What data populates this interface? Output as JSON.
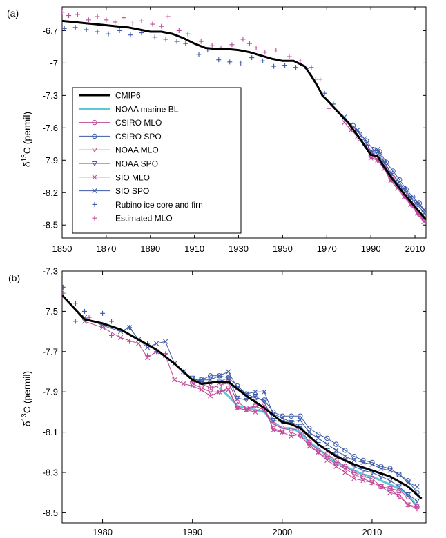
{
  "panels": {
    "a": {
      "label": "(a)"
    },
    "b": {
      "label": "(b)"
    }
  },
  "ylabel": {
    "delta": "δ",
    "sup": "13",
    "rest": "C  (permil)"
  },
  "colors": {
    "cmip6": "#000000",
    "noaa_bl": "#5bc8d8",
    "blue": "#3c5aa8",
    "magenta": "#c0489a"
  },
  "chart_data": [
    {
      "type": "line",
      "panel": "a",
      "xlim": [
        1850,
        2015
      ],
      "ylim": [
        -8.62,
        -6.48
      ],
      "xticks": [
        1850,
        1870,
        1890,
        1910,
        1930,
        1950,
        1970,
        1990,
        2010
      ],
      "yticks": [
        -6.7,
        -7,
        -7.3,
        -7.6,
        -7.9,
        -8.2,
        -8.5
      ],
      "ytick_labels": [
        "-6.7",
        "-7",
        "-7.3",
        "-7.6",
        "-7.9",
        "-8.2",
        "-8.5"
      ],
      "ylabel": "δ13C (permil)",
      "legend_position": "lower-left",
      "legend": [
        {
          "label": "CMIP6",
          "style": "thick-line",
          "color": "#000000"
        },
        {
          "label": "NOAA marine BL",
          "style": "line",
          "color": "#5bc8d8"
        },
        {
          "label": "CSIRO MLO",
          "style": "circle",
          "color": "#c0489a"
        },
        {
          "label": "CSIRO SPO",
          "style": "circle",
          "color": "#3c5aa8"
        },
        {
          "label": "NOAA MLO",
          "style": "triangle",
          "color": "#c0489a"
        },
        {
          "label": "NOAA SPO",
          "style": "triangle",
          "color": "#3c5aa8"
        },
        {
          "label": "SIO MLO",
          "style": "x",
          "color": "#c0489a"
        },
        {
          "label": "SIO SPO",
          "style": "x",
          "color": "#3c5aa8"
        },
        {
          "label": "Rubino ice core and firn",
          "style": "plus",
          "color": "#3c5aa8"
        },
        {
          "label": "Estimated MLO",
          "style": "plus",
          "color": "#c0489a"
        }
      ],
      "series": [
        {
          "name": "CMIP6",
          "x": [
            1850,
            1855,
            1860,
            1865,
            1870,
            1875,
            1880,
            1885,
            1890,
            1895,
            1900,
            1905,
            1910,
            1915,
            1920,
            1925,
            1930,
            1935,
            1940,
            1945,
            1950,
            1955,
            1960,
            1963,
            1966,
            1968,
            1970,
            1975,
            1980,
            1985,
            1990,
            1993,
            1995,
            2000,
            2005,
            2010,
            2015
          ],
          "y": [
            -6.61,
            -6.62,
            -6.63,
            -6.64,
            -6.65,
            -6.66,
            -6.67,
            -6.69,
            -6.71,
            -6.71,
            -6.73,
            -6.77,
            -6.82,
            -6.86,
            -6.87,
            -6.87,
            -6.88,
            -6.9,
            -6.93,
            -6.96,
            -6.98,
            -6.98,
            -7.03,
            -7.12,
            -7.22,
            -7.3,
            -7.34,
            -7.45,
            -7.56,
            -7.7,
            -7.85,
            -7.86,
            -7.93,
            -8.08,
            -8.21,
            -8.33,
            -8.45
          ]
        },
        {
          "name": "Rubino ice core and firn",
          "x": [
            1851,
            1856,
            1861,
            1866,
            1871,
            1876,
            1881,
            1886,
            1892,
            1897,
            1902,
            1906,
            1912,
            1916,
            1921,
            1926,
            1931,
            1936,
            1941,
            1946,
            1951,
            1956,
            1961,
            1965,
            1969,
            1973,
            1978,
            1983,
            1988
          ],
          "y": [
            -6.68,
            -6.67,
            -6.69,
            -6.71,
            -6.73,
            -6.7,
            -6.74,
            -6.72,
            -6.76,
            -6.78,
            -6.8,
            -6.82,
            -6.92,
            -6.88,
            -6.97,
            -6.99,
            -7.0,
            -6.95,
            -6.98,
            -7.03,
            -7.02,
            -7.04,
            -7.05,
            -7.15,
            -7.28,
            -7.38,
            -7.52,
            -7.63,
            -7.76
          ]
        },
        {
          "name": "Estimated MLO",
          "x": [
            1850,
            1853,
            1857,
            1862,
            1866,
            1870,
            1874,
            1878,
            1882,
            1886,
            1891,
            1895,
            1898,
            1903,
            1907,
            1913,
            1918,
            1922,
            1927,
            1932,
            1935,
            1938,
            1942,
            1947,
            1953,
            1958,
            1963,
            1967,
            1971,
            1975
          ],
          "y": [
            -6.53,
            -6.56,
            -6.55,
            -6.6,
            -6.57,
            -6.6,
            -6.62,
            -6.58,
            -6.63,
            -6.61,
            -6.64,
            -6.66,
            -6.57,
            -6.7,
            -6.73,
            -6.8,
            -6.84,
            -6.86,
            -6.83,
            -6.78,
            -6.82,
            -6.86,
            -6.9,
            -6.88,
            -6.94,
            -6.98,
            -7.04,
            -7.15,
            -7.42,
            -7.45
          ]
        },
        {
          "name": "CSIRO MLO",
          "x": [
            1982,
            1985,
            1988,
            1991,
            1994,
            1997,
            2000,
            2003,
            2006,
            2009,
            2012,
            2015
          ],
          "y": [
            -7.62,
            -7.7,
            -7.77,
            -7.86,
            -7.9,
            -7.98,
            -8.06,
            -8.15,
            -8.24,
            -8.32,
            -8.4,
            -8.46
          ]
        },
        {
          "name": "CSIRO SPO",
          "x": [
            1982,
            1985,
            1988,
            1991,
            1994,
            1997,
            2000,
            2003,
            2006,
            2009,
            2012,
            2015
          ],
          "y": [
            -7.58,
            -7.66,
            -7.72,
            -7.8,
            -7.82,
            -7.92,
            -8.0,
            -8.08,
            -8.17,
            -8.24,
            -8.3,
            -8.38
          ]
        },
        {
          "name": "NOAA MLO",
          "x": [
            1990,
            1993,
            1996,
            1999,
            2002,
            2005,
            2008,
            2011,
            2014
          ],
          "y": [
            -7.87,
            -7.9,
            -7.97,
            -8.08,
            -8.14,
            -8.23,
            -8.3,
            -8.38,
            -8.45
          ]
        },
        {
          "name": "NOAA SPO",
          "x": [
            1990,
            1993,
            1996,
            1999,
            2002,
            2005,
            2008,
            2011,
            2014
          ],
          "y": [
            -7.84,
            -7.83,
            -7.93,
            -8.04,
            -8.11,
            -8.18,
            -8.25,
            -8.31,
            -8.38
          ]
        },
        {
          "name": "SIO MLO",
          "x": [
            1978,
            1981,
            1984,
            1987,
            1990,
            1993,
            1996,
            1999,
            2002,
            2005,
            2008,
            2011,
            2014
          ],
          "y": [
            -7.55,
            -7.62,
            -7.68,
            -7.75,
            -7.88,
            -7.9,
            -7.98,
            -8.09,
            -8.16,
            -8.24,
            -8.31,
            -8.39,
            -8.47
          ]
        },
        {
          "name": "SIO SPO",
          "x": [
            1978,
            1981,
            1984,
            1987,
            1990,
            1993,
            1996,
            1999,
            2002,
            2005,
            2008,
            2011,
            2014
          ],
          "y": [
            -7.5,
            -7.57,
            -7.62,
            -7.7,
            -7.82,
            -7.8,
            -7.91,
            -8.02,
            -8.08,
            -8.16,
            -8.24,
            -8.29,
            -8.36
          ]
        }
      ]
    },
    {
      "type": "line",
      "panel": "b",
      "xlim": [
        1975.5,
        2016
      ],
      "ylim": [
        -8.55,
        -7.3
      ],
      "xticks": [
        1980,
        1990,
        2000,
        2010
      ],
      "yticks": [
        -7.3,
        -7.5,
        -7.7,
        -7.9,
        -8.1,
        -8.3,
        -8.5
      ],
      "ylabel": "δ13C (permil)",
      "series": [
        {
          "name": "CMIP6",
          "x": [
            1975.5,
            1978,
            1980,
            1982,
            1984,
            1986,
            1988,
            1990,
            1991,
            1993,
            1994,
            1996,
            1998,
            2000,
            2001,
            2002,
            2004,
            2006,
            2008,
            2010,
            2012,
            2014,
            2015.5
          ],
          "y": [
            -7.42,
            -7.54,
            -7.56,
            -7.59,
            -7.64,
            -7.69,
            -7.76,
            -7.84,
            -7.86,
            -7.85,
            -7.85,
            -7.92,
            -7.98,
            -8.05,
            -8.06,
            -8.08,
            -8.16,
            -8.22,
            -8.26,
            -8.29,
            -8.32,
            -8.37,
            -8.43
          ]
        },
        {
          "name": "NOAA marine BL",
          "x": [
            1993,
            1994,
            1995,
            1996,
            1997,
            1998,
            1999,
            2000,
            2001,
            2002,
            2003,
            2004,
            2005,
            2006,
            2007,
            2008,
            2009,
            2010,
            2011,
            2012,
            2013,
            2014,
            2015
          ],
          "y": [
            -7.88,
            -7.92,
            -7.97,
            -7.98,
            -7.99,
            -8.0,
            -8.05,
            -8.08,
            -8.08,
            -8.1,
            -8.15,
            -8.18,
            -8.22,
            -8.25,
            -8.27,
            -8.29,
            -8.31,
            -8.32,
            -8.34,
            -8.36,
            -8.38,
            -8.41,
            -8.47
          ]
        },
        {
          "name": "CSIRO MLO",
          "x": [
            1991,
            1992,
            1993,
            1994,
            1995,
            1996,
            1997,
            1998,
            1999,
            2000,
            2001,
            2002,
            2003,
            2004,
            2005,
            2006,
            2007,
            2008,
            2009,
            2010,
            2011,
            2012,
            2013,
            2014,
            2015
          ],
          "y": [
            -7.86,
            -7.88,
            -7.87,
            -7.85,
            -7.95,
            -7.98,
            -7.97,
            -7.99,
            -8.06,
            -8.08,
            -8.09,
            -8.08,
            -8.15,
            -8.19,
            -8.21,
            -8.24,
            -8.27,
            -8.3,
            -8.32,
            -8.33,
            -8.37,
            -8.38,
            -8.39,
            -8.42,
            -8.47
          ]
        },
        {
          "name": "CSIRO SPO",
          "x": [
            1991,
            1992,
            1993,
            1994,
            1995,
            1996,
            1997,
            1998,
            1999,
            2000,
            2001,
            2002,
            2003,
            2004,
            2005,
            2006,
            2007,
            2008,
            2009,
            2010,
            2011,
            2012,
            2013,
            2014,
            2015
          ],
          "y": [
            -7.84,
            -7.82,
            -7.82,
            -7.83,
            -7.87,
            -7.91,
            -7.93,
            -7.94,
            -8.0,
            -8.02,
            -8.02,
            -8.02,
            -8.08,
            -8.11,
            -8.13,
            -8.16,
            -8.19,
            -8.22,
            -8.24,
            -8.25,
            -8.27,
            -8.28,
            -8.31,
            -8.34,
            -8.4
          ]
        },
        {
          "name": "NOAA MLO",
          "x": [
            1990,
            1991,
            1992,
            1993,
            1994,
            1995,
            1996,
            1997,
            1998,
            1999,
            2000,
            2001,
            2002,
            2003,
            2004,
            2005,
            2006,
            2007,
            2008,
            2009,
            2010,
            2011,
            2012,
            2013,
            2014,
            2015
          ],
          "y": [
            -7.86,
            -7.88,
            -7.9,
            -7.9,
            -7.88,
            -7.98,
            -7.99,
            -7.97,
            -7.99,
            -8.08,
            -8.1,
            -8.1,
            -8.12,
            -8.16,
            -8.2,
            -8.23,
            -8.26,
            -8.28,
            -8.31,
            -8.33,
            -8.35,
            -8.37,
            -8.38,
            -8.42,
            -8.46,
            -8.48
          ]
        },
        {
          "name": "NOAA SPO",
          "x": [
            1990,
            1991,
            1992,
            1993,
            1994,
            1995,
            1996,
            1997,
            1998,
            1999,
            2000,
            2001,
            2002,
            2003,
            2004,
            2005,
            2006,
            2007,
            2008,
            2009,
            2010,
            2011,
            2012,
            2013,
            2014,
            2015
          ],
          "y": [
            -7.83,
            -7.85,
            -7.86,
            -7.85,
            -7.83,
            -7.93,
            -7.94,
            -7.92,
            -7.95,
            -8.04,
            -8.05,
            -8.05,
            -8.07,
            -8.12,
            -8.16,
            -8.19,
            -8.21,
            -8.24,
            -8.27,
            -8.29,
            -8.3,
            -8.32,
            -8.34,
            -8.37,
            -8.41,
            -8.44
          ]
        },
        {
          "name": "SIO MLO",
          "x": [
            1978,
            1980,
            1982,
            1984,
            1985,
            1986,
            1987,
            1988,
            1989,
            1990,
            1991,
            1992,
            1993,
            1994,
            1995,
            1996,
            1997,
            1998,
            1999,
            2000,
            2001,
            2002,
            2003,
            2004,
            2005,
            2006,
            2007,
            2008,
            2009,
            2010,
            2011,
            2012,
            2013,
            2014,
            2015
          ],
          "y": [
            -7.55,
            -7.58,
            -7.63,
            -7.66,
            -7.73,
            -7.7,
            -7.72,
            -7.84,
            -7.86,
            -7.87,
            -7.89,
            -7.92,
            -7.9,
            -7.89,
            -7.98,
            -7.99,
            -8.0,
            -7.97,
            -8.09,
            -8.1,
            -8.12,
            -8.11,
            -8.17,
            -8.2,
            -8.24,
            -8.27,
            -8.3,
            -8.33,
            -8.34,
            -8.35,
            -8.37,
            -8.4,
            -8.41,
            -8.46,
            -8.47
          ]
        },
        {
          "name": "SIO SPO",
          "x": [
            1978,
            1980,
            1982,
            1983,
            1984,
            1985,
            1986,
            1987,
            1988,
            1989,
            1990,
            1991,
            1992,
            1993,
            1994,
            1995,
            1996,
            1997,
            1998,
            1999,
            2000,
            2001,
            2002,
            2003,
            2004,
            2005,
            2006,
            2007,
            2008,
            2009,
            2010,
            2011,
            2012,
            2013,
            2014,
            2015
          ],
          "y": [
            -7.53,
            -7.57,
            -7.6,
            -7.58,
            -7.64,
            -7.68,
            -7.66,
            -7.65,
            -7.76,
            -7.8,
            -7.84,
            -7.84,
            -7.84,
            -7.82,
            -7.8,
            -7.88,
            -7.91,
            -7.9,
            -7.9,
            -8.01,
            -8.03,
            -8.05,
            -8.04,
            -8.1,
            -8.13,
            -8.16,
            -8.19,
            -8.22,
            -8.24,
            -8.25,
            -8.26,
            -8.28,
            -8.29,
            -8.31,
            -8.35,
            -8.37
          ]
        },
        {
          "name": "Rubino ice core and firn",
          "x": [
            1975.6,
            1977,
            1978,
            1980,
            1981,
            1983,
            1985,
            1986,
            1989
          ],
          "y": [
            -7.38,
            -7.46,
            -7.5,
            -7.51,
            -7.55,
            -7.58,
            -7.66,
            -7.7,
            -7.8
          ]
        },
        {
          "name": "Estimated MLO",
          "x": [
            1975.6,
            1977,
            1978.5,
            1981,
            1983,
            1985,
            1987,
            1990,
            1992,
            1993.5
          ],
          "y": [
            -7.41,
            -7.55,
            -7.53,
            -7.62,
            -7.65,
            -7.72,
            -7.71,
            -7.85,
            -7.88,
            -7.86
          ]
        }
      ]
    }
  ]
}
